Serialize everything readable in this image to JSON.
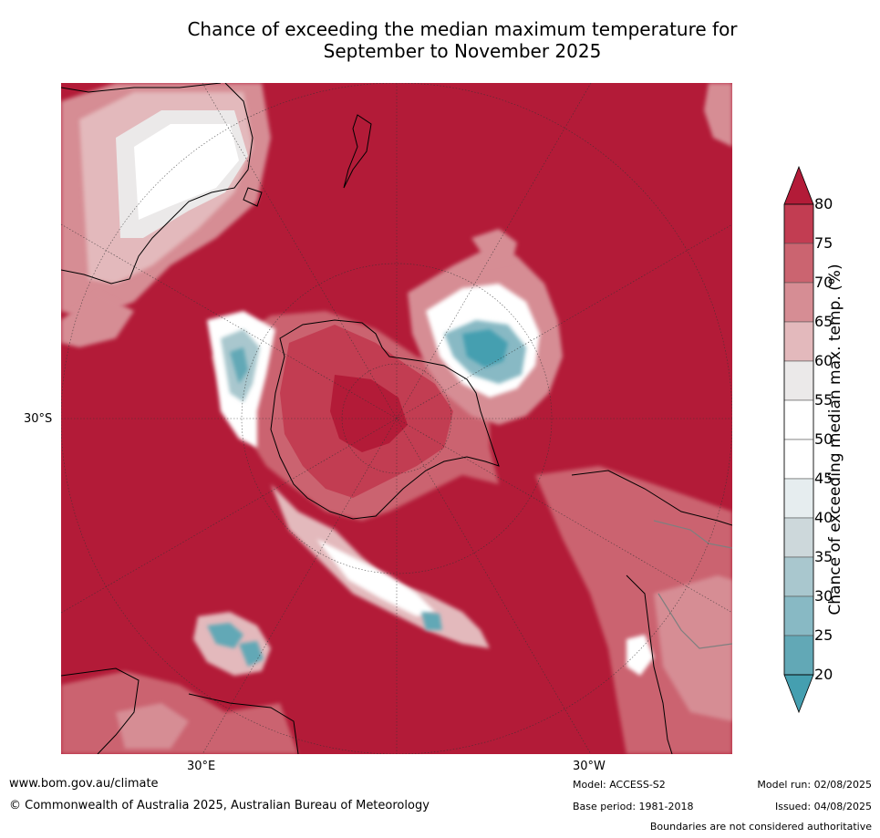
{
  "title": {
    "line1": "Chance of exceeding the median maximum temperature for",
    "line2": "September to November 2025"
  },
  "map": {
    "projection": "south-polar-stereographic",
    "lat_label_left": "30°S",
    "lon_label_bottom_left": "30°E",
    "lon_label_bottom_right": "30°W",
    "predominant_category": "80+",
    "colors": {
      "above_80": "#b31b38",
      "75_80": "#c23d52",
      "70_75": "#cb6470",
      "65_70": "#d68d94",
      "60_65": "#e3b9bc",
      "55_60": "#ebe9e9",
      "50_55": "#ffffff",
      "45_50": "#ffffff",
      "40_45": "#e6edef",
      "35_40": "#cdd8db",
      "30_35": "#a9c7ce",
      "25_30": "#88b9c4",
      "20_25": "#62a8b6",
      "below_20": "#459fb0",
      "coastline": "#000000",
      "border": "#7f7f7f"
    }
  },
  "colorbar": {
    "label": "Chance of exceeding median max. temp. (%)",
    "ticks": [
      "80",
      "75",
      "70",
      "65",
      "60",
      "55",
      "50",
      "45",
      "40",
      "35",
      "30",
      "25",
      "20"
    ],
    "bands": [
      "#c23d52",
      "#cb6470",
      "#d68d94",
      "#e3b9bc",
      "#ebe9e9",
      "#ffffff",
      "#ffffff",
      "#e6edef",
      "#cdd8db",
      "#a9c7ce",
      "#88b9c4",
      "#62a8b6"
    ],
    "extend_top_color": "#b31b38",
    "extend_bottom_color": "#459fb0"
  },
  "footer": {
    "website": "www.bom.gov.au/climate",
    "copyright": "© Commonwealth of Australia 2025, Australian Bureau of Meteorology",
    "model": "Model: ACCESS-S2",
    "base_period": "Base period: 1981-2018",
    "model_run": "Model run: 02/08/2025",
    "issued": "Issued: 04/08/2025",
    "disclaimer": "Boundaries are not considered authoritative"
  }
}
